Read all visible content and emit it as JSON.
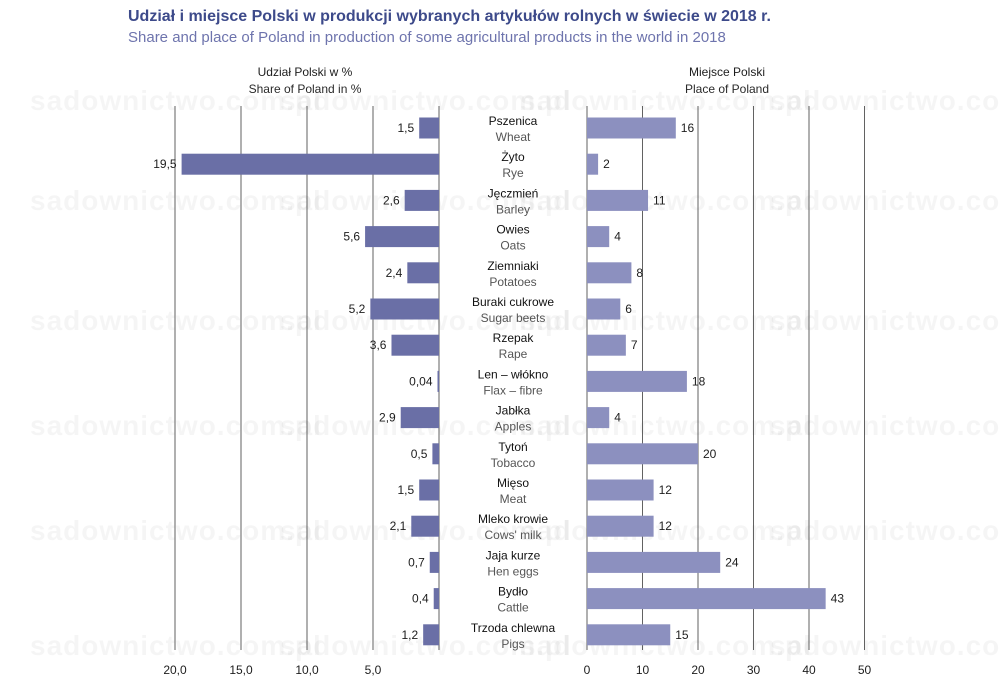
{
  "title": "Udział i miejsce Polski w produkcji wybranych artykułów rolnych w świecie w 2018 r.",
  "subtitle": "Share and place of Poland in production of some agricultural products in the world in 2018",
  "watermark": "sadownictwo.com.pl",
  "colors": {
    "title": "#3d4a8a",
    "subtitle": "#6e74ad",
    "share_bar": "#6a6fa6",
    "place_bar": "#8c90bf",
    "grid": "#3a3a3a"
  },
  "chart_data": [
    {
      "type": "bar",
      "orientation": "horizontal",
      "direction": "right-to-left",
      "header_pl": "Udział Polski w %",
      "header_en": "Share of Poland in %",
      "categories_pl": [
        "Pszenica",
        "Żyto",
        "Jęczmień",
        "Owies",
        "Ziemniaki",
        "Buraki cukrowe",
        "Rzepak",
        "Len – włókno",
        "Jabłka",
        "Tytoń",
        "Mięso",
        "Mleko krowie",
        "Jaja kurze",
        "Bydło",
        "Trzoda chlewna"
      ],
      "categories_en": [
        "Wheat",
        "Rye",
        "Barley",
        "Oats",
        "Potatoes",
        "Sugar beets",
        "Rape",
        "Flax – fibre",
        "Apples",
        "Tobacco",
        "Meat",
        "Cows' milk",
        "Hen eggs",
        "Cattle",
        "Pigs"
      ],
      "values": [
        1.5,
        19.5,
        2.6,
        5.6,
        2.4,
        5.2,
        3.6,
        0.04,
        2.9,
        0.5,
        1.5,
        2.1,
        0.7,
        0.4,
        1.2
      ],
      "value_labels": [
        "1,5",
        "19,5",
        "2,6",
        "5,6",
        "2,4",
        "5,2",
        "3,6",
        "0,04",
        "2,9",
        "0,5",
        "1,5",
        "2,1",
        "0,7",
        "0,4",
        "1,2"
      ],
      "xlim": [
        0,
        20
      ],
      "ticks": [
        20,
        15,
        10,
        5
      ],
      "tick_labels": [
        "20,0",
        "15,0",
        "10,0",
        "5,0"
      ],
      "grid": true
    },
    {
      "type": "bar",
      "orientation": "horizontal",
      "header_pl": "Miejsce Polski",
      "header_en": "Place of Poland",
      "values": [
        16,
        2,
        11,
        4,
        8,
        6,
        7,
        18,
        4,
        20,
        12,
        12,
        24,
        43,
        15
      ],
      "value_labels": [
        "16",
        "2",
        "11",
        "4",
        "8",
        "6",
        "7",
        "18",
        "4",
        "20",
        "12",
        "12",
        "24",
        "43",
        "15"
      ],
      "xlim": [
        0,
        50
      ],
      "ticks": [
        0,
        10,
        20,
        30,
        40,
        50
      ],
      "tick_labels": [
        "0",
        "10",
        "20",
        "30",
        "40",
        "50"
      ],
      "grid": true
    }
  ]
}
